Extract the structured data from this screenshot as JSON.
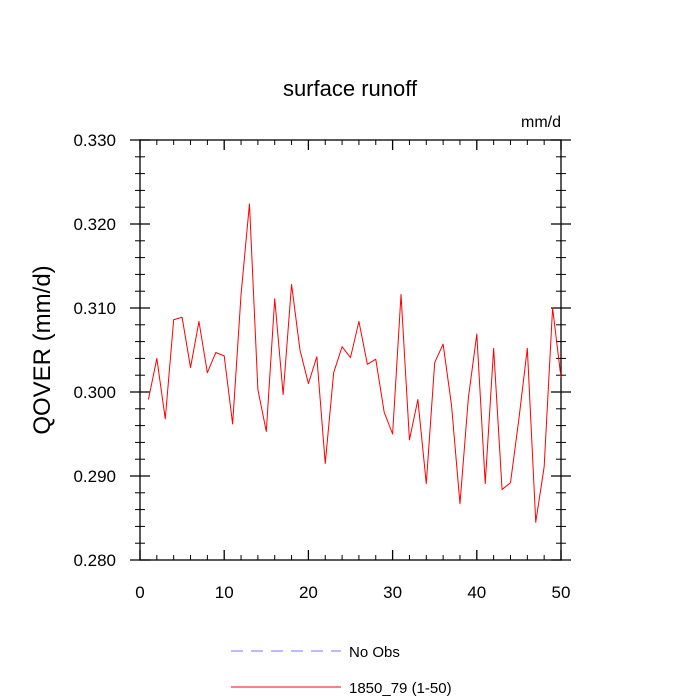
{
  "chart_data": {
    "type": "line",
    "title": "surface runoff",
    "units": "mm/d",
    "xlabel": "",
    "ylabel": "QOVER  (mm/d)",
    "xlim": [
      0,
      50
    ],
    "ylim": [
      0.28,
      0.33
    ],
    "x_ticks": [
      0,
      10,
      20,
      30,
      40,
      50
    ],
    "x_tick_labels": [
      "0",
      "10",
      "20",
      "30",
      "40",
      "50"
    ],
    "y_ticks": [
      0.28,
      0.29,
      0.3,
      0.31,
      0.32,
      0.33
    ],
    "y_tick_labels": [
      "0.280",
      "0.290",
      "0.300",
      "0.310",
      "0.320",
      "0.330"
    ],
    "grid": false,
    "legend_position": "bottom",
    "series": [
      {
        "name": "No Obs",
        "color": "#7777ff",
        "dash": "dashed",
        "x": [],
        "values": []
      },
      {
        "name": "1850_79 (1-50)",
        "color": "#ff0000",
        "dash": "solid",
        "x": [
          1,
          2,
          3,
          4,
          5,
          6,
          7,
          8,
          9,
          10,
          11,
          12,
          13,
          14,
          15,
          16,
          17,
          18,
          19,
          20,
          21,
          22,
          23,
          24,
          25,
          26,
          27,
          28,
          29,
          30,
          31,
          32,
          33,
          34,
          35,
          36,
          37,
          38,
          39,
          40,
          41,
          42,
          43,
          44,
          45,
          46,
          47,
          48,
          49,
          50
        ],
        "values": [
          0.2991,
          0.304,
          0.2968,
          0.3086,
          0.3089,
          0.3029,
          0.3084,
          0.3023,
          0.3047,
          0.3043,
          0.2962,
          0.3116,
          0.3224,
          0.3003,
          0.2953,
          0.3111,
          0.2997,
          0.3128,
          0.305,
          0.301,
          0.3042,
          0.2915,
          0.3023,
          0.3054,
          0.3041,
          0.3084,
          0.3033,
          0.3039,
          0.2976,
          0.295,
          0.3116,
          0.2943,
          0.2991,
          0.2891,
          0.3035,
          0.3057,
          0.2984,
          0.2867,
          0.2993,
          0.3069,
          0.2891,
          0.3052,
          0.2884,
          0.2892,
          0.2968,
          0.3052,
          0.2845,
          0.2911,
          0.31,
          0.3017
        ]
      }
    ]
  }
}
